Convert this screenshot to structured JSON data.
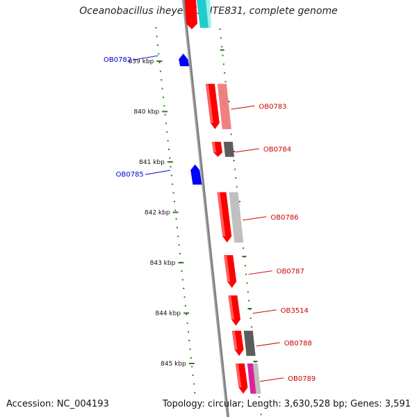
{
  "title": "Oceanobacillus iheyensis HTE831, complete genome",
  "footer": {
    "accession": "Accession: NC_004193",
    "summary": "Topology: circular; Length: 3,630,528 bp; Genes: 3,591"
  },
  "colors": {
    "backbone": "#808080",
    "tick": "#2e7d1f",
    "forward_gene": "#ff0000",
    "reverse_gene": "#0000ff",
    "forward_label": "#cc0000",
    "reverse_label": "#0000cc",
    "cyan_feature": "#22cccc",
    "magenta_feature": "#dd2299"
  },
  "ruler": [
    {
      "kbp": 839,
      "label": "839 kbp"
    },
    {
      "kbp": 840,
      "label": "840 kbp"
    },
    {
      "kbp": 841,
      "label": "841 kbp"
    },
    {
      "kbp": 842,
      "label": "842 kbp"
    },
    {
      "kbp": 843,
      "label": "843 kbp"
    },
    {
      "kbp": 844,
      "label": "844 kbp"
    },
    {
      "kbp": 845,
      "label": "845 kbp"
    }
  ],
  "genes": [
    {
      "label": "OB0782",
      "strand": "reverse",
      "start_kbp": 838.85,
      "end_kbp": 839.1
    },
    {
      "label": "OB0783",
      "strand": "forward",
      "start_kbp": 839.45,
      "end_kbp": 840.35,
      "ring2": "lightred"
    },
    {
      "label": "OB0784",
      "strand": "forward",
      "start_kbp": 840.6,
      "end_kbp": 840.9,
      "ring2": "darkgray"
    },
    {
      "label": "OB0785",
      "strand": "reverse",
      "start_kbp": 841.05,
      "end_kbp": 841.45
    },
    {
      "label": "OB0786",
      "strand": "forward",
      "start_kbp": 841.6,
      "end_kbp": 842.6,
      "ring2": "lightgray"
    },
    {
      "label": "OB0787",
      "strand": "forward",
      "start_kbp": 842.85,
      "end_kbp": 843.5
    },
    {
      "label": "OB3514",
      "strand": "forward",
      "start_kbp": 843.65,
      "end_kbp": 844.25
    },
    {
      "label": "OB0788",
      "strand": "forward",
      "start_kbp": 844.35,
      "end_kbp": 844.85,
      "ring2": "darkgray"
    },
    {
      "label": "OB0789",
      "strand": "forward",
      "start_kbp": 845.0,
      "end_kbp": 845.6,
      "ring2": "magenta"
    }
  ]
}
